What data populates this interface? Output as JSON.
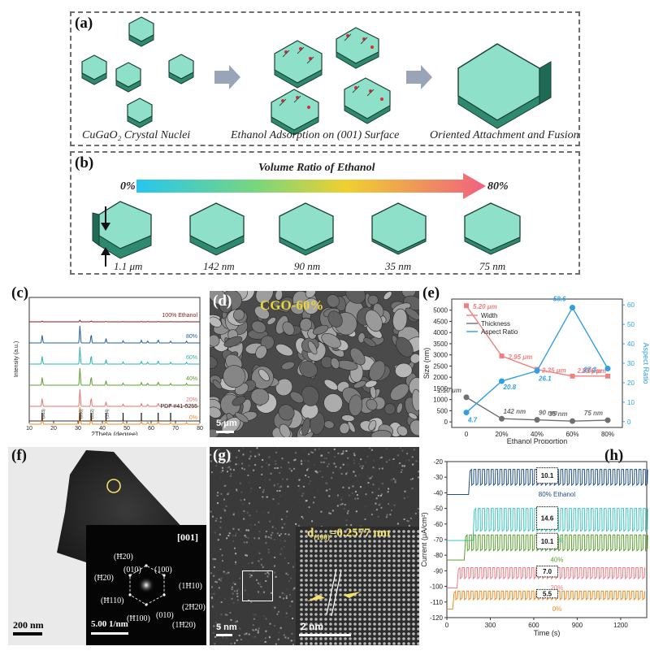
{
  "panel_labels": {
    "a": "(a)",
    "b": "(b)",
    "c": "(c)",
    "d": "(d)",
    "e": "(e)",
    "f": "(f)",
    "g": "(g)",
    "h": "(h)"
  },
  "panel_a": {
    "captions": [
      "CuGaO₂ Crystal Nuclei",
      "Ethanol Adsorption on (001) Surface",
      "Oriented Attachment and Fusion"
    ]
  },
  "panel_b": {
    "title": "Volume Ratio of Ethanol",
    "start": "0%",
    "end": "80%",
    "thicknesses": [
      "1.1 μm",
      "142 nm",
      "90 nm",
      "35 nm",
      "75 nm"
    ]
  },
  "panel_c": {
    "xlabel": "2Theta (degree)",
    "ylabel": "Intensity (a.u.)",
    "ref_label": "PDF #41-0255",
    "series_labels": [
      "100% Ethanol",
      "80%",
      "60%",
      "40%",
      "20%",
      "0%"
    ],
    "series_colors": [
      "#8b1a1a",
      "#1f5fa0",
      "#2ab3ad",
      "#5aa02c",
      "#e8736f",
      "#f08a24"
    ],
    "hkl": [
      "(003)",
      "(006)",
      "(012)",
      "(104)"
    ],
    "xticks": [
      "10",
      "20",
      "30",
      "40",
      "50",
      "60",
      "70",
      "80"
    ]
  },
  "panel_d": {
    "label": "CGO-60%",
    "scale": "5 μm"
  },
  "panel_f": {
    "zone": "[001]",
    "scale_img": "200 nm",
    "scale_fft": "5.00 1/nm",
    "spots": [
      "(Ħ20)",
      "(Ħ20)",
      "(010)",
      "(100)",
      "(1Ħ10)",
      "(Ħ110)",
      "(Ħ100)",
      "(010)",
      "(2Ħ20)",
      "(1Ħ20)"
    ]
  },
  "panel_g": {
    "d_label": "d",
    "d_sub": "(100)",
    "d_value": "=0.2577 nm",
    "scale": "5 nm",
    "scale_inset": "2 nm"
  },
  "panel_e": {
    "type": "line",
    "categories": [
      "0",
      "20%",
      "40%",
      "60%",
      "80%"
    ],
    "xlabel": "Ethanol Proportion",
    "ylabel_left": "Size (nm)",
    "ylabel_right": "Aspect Ratio",
    "yticks_left": [
      "0",
      "500",
      "1000",
      "1500",
      "2000",
      "2500",
      "3000",
      "3500",
      "4000",
      "4500",
      "5000"
    ],
    "yticks_right": [
      "0",
      "10",
      "20",
      "30",
      "40",
      "50",
      "60"
    ],
    "series": [
      {
        "name": "Width",
        "axis": "left",
        "color": "#f08080",
        "values": [
          5200,
          2950,
          2350,
          2050,
          2050
        ],
        "labels": [
          "5.20 μm",
          "2.95 μm",
          "2.35 μm",
          "2.05 μm",
          "2.05 μm"
        ]
      },
      {
        "name": "Thickness",
        "axis": "left",
        "color": "#707070",
        "values": [
          1100,
          142,
          90,
          35,
          75
        ],
        "labels": [
          "1.10 μm",
          "142 nm",
          "90 nm",
          "35 nm",
          "75 nm"
        ]
      },
      {
        "name": "Aspect Ratio",
        "axis": "right",
        "color": "#2ea0e6",
        "values": [
          4.7,
          20.8,
          26.1,
          58.6,
          27.3
        ],
        "labels": [
          "4.7",
          "20.8",
          "26.1",
          "58.6",
          "27.3"
        ]
      }
    ]
  },
  "panel_h": {
    "xlabel": "Time (s)",
    "ylabel": "Current (μA/cm²)",
    "xticks": [
      "0",
      "300",
      "600",
      "900",
      "1200"
    ],
    "yticks": [
      "-20",
      "-30",
      "-40",
      "-50",
      "-60",
      "-70",
      "-80",
      "-90",
      "-100",
      "-110",
      "-120"
    ],
    "series": [
      {
        "name": "80% Ethanol",
        "color": "#1f4f8a",
        "amp": "10.1"
      },
      {
        "name": "60%",
        "color": "#3cc6c0",
        "amp": "14.6"
      },
      {
        "name": "40%",
        "color": "#5aa02c",
        "amp": "10.1"
      },
      {
        "name": "20%",
        "color": "#f07a80",
        "amp": "7.0"
      },
      {
        "name": "0%",
        "color": "#f08a24",
        "amp": "5.5"
      }
    ]
  }
}
